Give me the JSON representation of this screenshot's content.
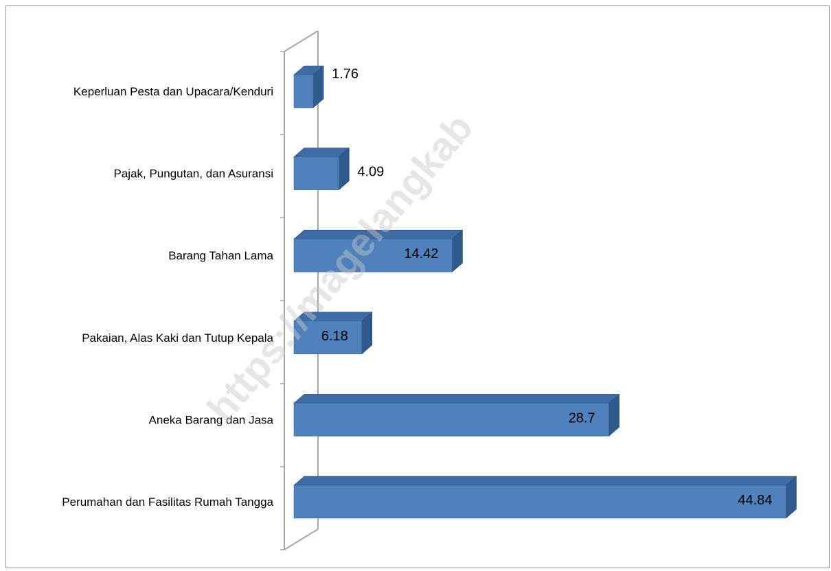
{
  "watermark": "https://magelangkab",
  "chart_data": {
    "type": "bar",
    "orientation": "horizontal",
    "style": "3d",
    "categories": [
      "Perumahan dan Fasilitas Rumah Tangga",
      "Aneka Barang dan Jasa",
      "Pakaian, Alas Kaki dan Tutup Kepala",
      "Barang Tahan Lama",
      "Pajak, Pungutan, dan Asuransi",
      "Keperluan Pesta dan Upacara/Kenduri"
    ],
    "values": [
      44.84,
      28.7,
      6.18,
      14.42,
      4.09,
      1.76
    ],
    "data_labels": [
      "44.84",
      "28.7",
      "6.18",
      "14.42",
      "4.09",
      "1.76"
    ],
    "xlim": [
      0,
      50
    ],
    "grid": false,
    "legend": "none",
    "bar_color": "#4f81bd",
    "bar_side_color": "#2f5a8c",
    "bar_top_color": "#3d6ca6",
    "axis_color": "#a6a6a6"
  }
}
